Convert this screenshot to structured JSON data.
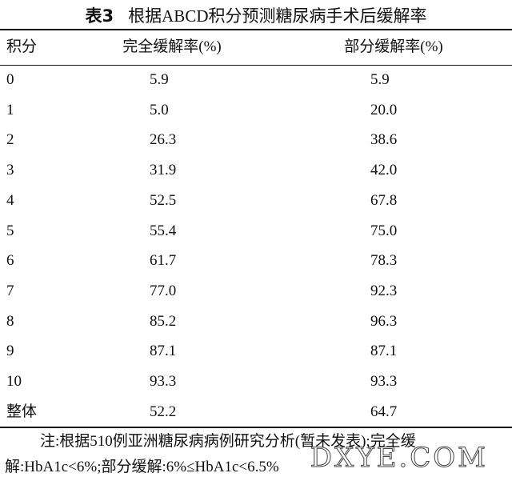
{
  "title": {
    "label": "表3",
    "text": "根据ABCD积分预测糖尿病手术后缓解率"
  },
  "table": {
    "header": [
      "积分",
      "完全缓解率(%)",
      "部分缓解率(%)"
    ],
    "rows": [
      [
        "0",
        "5.9",
        "5.9"
      ],
      [
        "1",
        "5.0",
        "20.0"
      ],
      [
        "2",
        "26.3",
        "38.6"
      ],
      [
        "3",
        "31.9",
        "42.0"
      ],
      [
        "4",
        "52.5",
        "67.8"
      ],
      [
        "5",
        "55.4",
        "75.0"
      ],
      [
        "6",
        "61.7",
        "78.3"
      ],
      [
        "7",
        "77.0",
        "92.3"
      ],
      [
        "8",
        "85.2",
        "96.3"
      ],
      [
        "9",
        "87.1",
        "87.1"
      ],
      [
        "10",
        "93.3",
        "93.3"
      ],
      [
        "整体",
        "52.2",
        "64.7"
      ]
    ]
  },
  "note": "注:根据510例亚洲糖尿病病例研究分析(暂未发表);完全缓解:HbA1c<6%;部分缓解:6%≤HbA1c<6.5%",
  "watermark": "DXYE.COM"
}
